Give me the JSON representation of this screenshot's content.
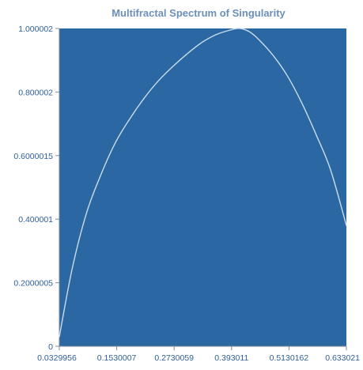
{
  "colors": {
    "plot_background": "#2b68a3",
    "curve": "#c9dcef",
    "title": "#6c8fb8",
    "tick_labels": "#2f5f95",
    "axis": "#7f8c99"
  },
  "chart_data": {
    "type": "line",
    "title": "Multifractal Spectrum of Singularity",
    "xlabel": "",
    "ylabel": "",
    "grid": false,
    "xlim": [
      0.0329956,
      0.633021
    ],
    "ylim": [
      0,
      1.000002
    ],
    "x_tick_labels": [
      "0.0329956",
      "0.1530007",
      "0.2730059",
      "0.393011",
      "0.5130162",
      "0.633021"
    ],
    "x_tick_values": [
      0.0329956,
      0.1530007,
      0.2730059,
      0.393011,
      0.5130162,
      0.633021
    ],
    "y_tick_labels": [
      "0",
      "0.2000005",
      "0.400001",
      "0.6000015",
      "0.800002",
      "1.000002"
    ],
    "y_tick_values": [
      0,
      0.2000005,
      0.400001,
      0.6000015,
      0.800002,
      1.000002
    ],
    "series": [
      {
        "x": [
          0.033,
          0.06,
          0.09,
          0.12,
          0.15,
          0.18,
          0.21,
          0.24,
          0.27,
          0.3,
          0.33,
          0.36,
          0.39,
          0.41,
          0.43,
          0.45,
          0.48,
          0.51,
          0.54,
          0.57,
          0.6,
          0.633
        ],
        "y": [
          0.03,
          0.245,
          0.42,
          0.54,
          0.64,
          0.715,
          0.78,
          0.835,
          0.88,
          0.92,
          0.955,
          0.98,
          0.995,
          1.0,
          0.99,
          0.965,
          0.915,
          0.85,
          0.765,
          0.665,
          0.555,
          0.38
        ]
      }
    ]
  }
}
